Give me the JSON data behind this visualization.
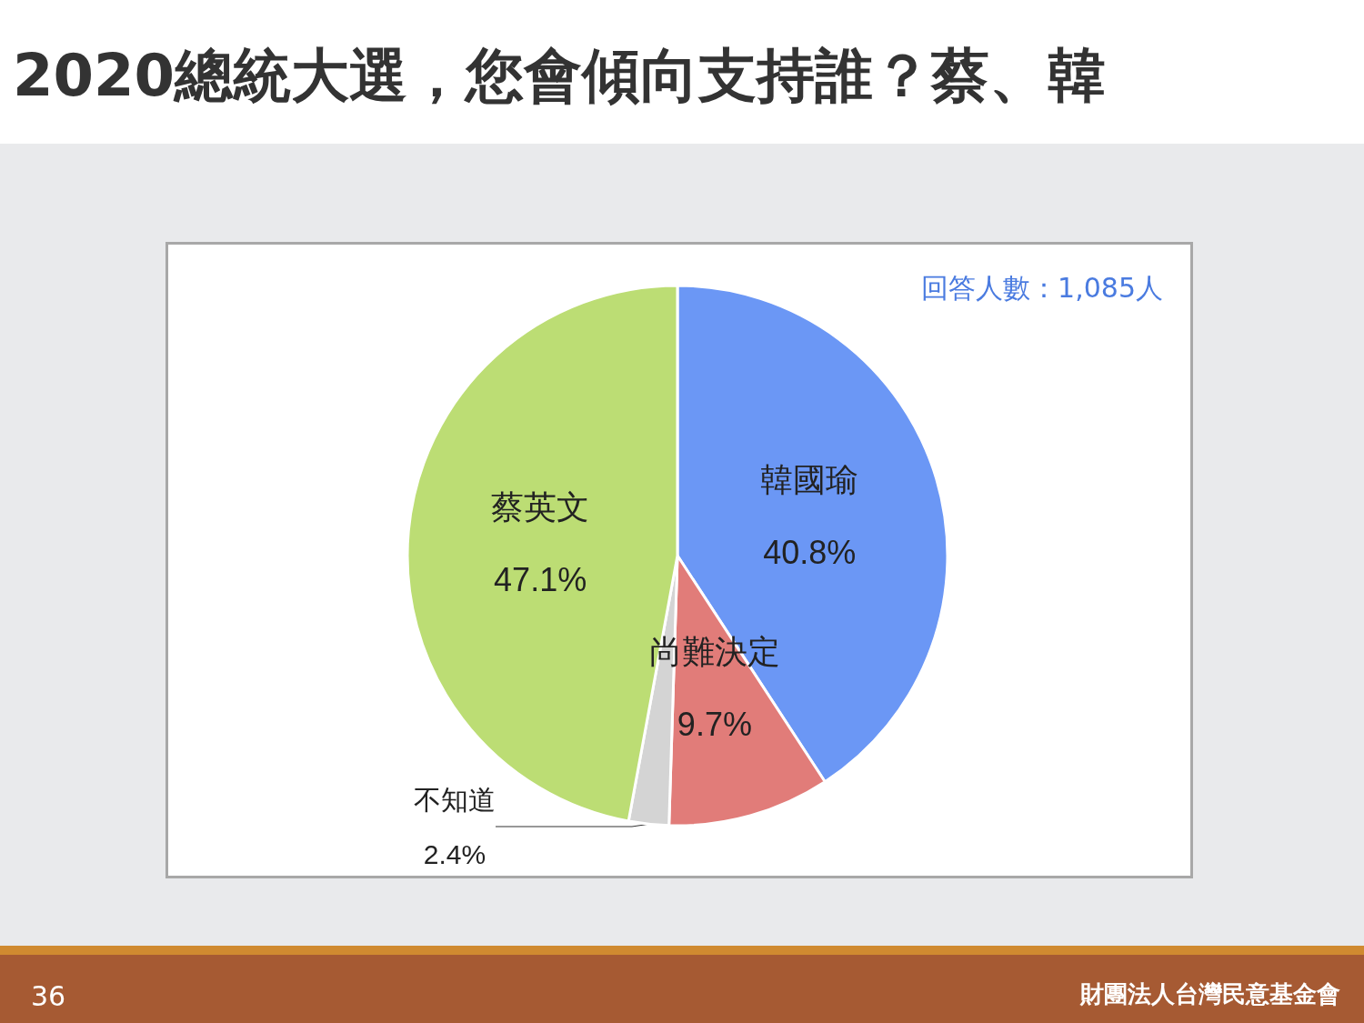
{
  "chart_data": {
    "type": "pie",
    "title": "2020總統大選，您會傾向支持誰？蔡、韓",
    "categories": [
      "韓國瑜",
      "尚難決定",
      "不知道",
      "蔡英文"
    ],
    "values": [
      40.8,
      9.7,
      2.4,
      47.1
    ],
    "colors": [
      "#6b97f5",
      "#e17c79",
      "#d4d4d4",
      "#bcdd74"
    ],
    "value_labels": [
      "40.8%",
      "9.7%",
      "2.4%",
      "47.1%"
    ],
    "legend": false,
    "annotations": [
      "回答人數：1,085人",
      "36",
      "財團法人台灣民意基金會"
    ]
  }
}
